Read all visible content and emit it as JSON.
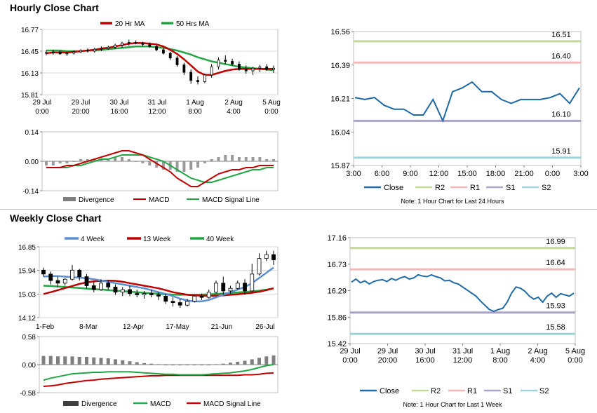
{
  "hourly": {
    "title": "Hourly Close Chart",
    "legend": {
      "ma20": "20 Hr MA",
      "ma50": "50 Hrs MA"
    },
    "x_ticks": [
      [
        "29 Jul",
        "0:00"
      ],
      [
        "29 Jul",
        "20:00"
      ],
      [
        "30 Jul",
        "16:00"
      ],
      [
        "31 Jul",
        "12:00"
      ],
      [
        "1 Aug",
        "8:00"
      ],
      [
        "2 Aug",
        "4:00"
      ],
      [
        "5 Aug",
        "0:00"
      ]
    ],
    "macd_legend": {
      "divergence": "Divergence",
      "macd": "MACD",
      "signal": "MACD Signal Line"
    }
  },
  "weekly": {
    "title": "Weekly Close Chart",
    "legend": {
      "w4": "4 Week",
      "w13": "13 Week",
      "w40": "40 Week"
    },
    "x_ticks": [
      "1-Feb",
      "8-Mar",
      "12-Apr",
      "17-May",
      "21-Jun",
      "26-Jul"
    ],
    "macd_legend": {
      "divergence": "Divergence",
      "macd": "MACD",
      "signal": "MACD Signal Line"
    }
  },
  "right_top": {
    "legend": {
      "close": "Close",
      "r2": "R2",
      "r1": "R1",
      "s1": "S1",
      "s2": "S2"
    },
    "note": "Note: 1 Hour Chart for Last 24 Hours"
  },
  "right_bottom": {
    "legend": {
      "close": "Close",
      "r2": "R2",
      "r1": "R1",
      "s1": "S1",
      "s2": "S2"
    },
    "note": "Note: 1 Hour Chart for Last 1 Week"
  },
  "colors": {
    "close": "#1f6aa5",
    "r2": "#c4d79b",
    "r1": "#f2b8b8",
    "s1": "#a9a3c6",
    "s2": "#9fd3d8",
    "ma_red": "#c00000",
    "ma_green": "#22a645",
    "ma_blue": "#5b8ed4",
    "div": "#7f7f7f",
    "grid": "#d9d9d9"
  },
  "chart_data": [
    {
      "id": "hourly-price",
      "type": "candlestick",
      "title": "Hourly Close Chart",
      "ylim": [
        15.81,
        16.77
      ],
      "y_ticks": [
        "16.77",
        "16.45",
        "16.13",
        "15.81"
      ],
      "ohlc": [
        [
          16.42,
          16.46,
          16.39,
          16.43
        ],
        [
          16.43,
          16.47,
          16.4,
          16.44
        ],
        [
          16.44,
          16.46,
          16.4,
          16.41
        ],
        [
          16.41,
          16.44,
          16.38,
          16.42
        ],
        [
          16.42,
          16.46,
          16.4,
          16.44
        ],
        [
          16.44,
          16.48,
          16.42,
          16.46
        ],
        [
          16.46,
          16.49,
          16.43,
          16.45
        ],
        [
          16.45,
          16.5,
          16.43,
          16.48
        ],
        [
          16.48,
          16.52,
          16.45,
          16.49
        ],
        [
          16.49,
          16.53,
          16.47,
          16.51
        ],
        [
          16.51,
          16.56,
          16.48,
          16.54
        ],
        [
          16.54,
          16.59,
          16.5,
          16.57
        ],
        [
          16.57,
          16.62,
          16.53,
          16.58
        ],
        [
          16.58,
          16.61,
          16.55,
          16.57
        ],
        [
          16.57,
          16.59,
          16.52,
          16.55
        ],
        [
          16.55,
          16.58,
          16.5,
          16.52
        ],
        [
          16.52,
          16.54,
          16.45,
          16.47
        ],
        [
          16.47,
          16.5,
          16.4,
          16.42
        ],
        [
          16.42,
          16.44,
          16.32,
          16.35
        ],
        [
          16.35,
          16.38,
          16.22,
          16.25
        ],
        [
          16.25,
          16.28,
          16.1,
          16.14
        ],
        [
          16.14,
          16.18,
          15.97,
          16.02
        ],
        [
          16.02,
          16.08,
          15.96,
          16.0
        ],
        [
          16.0,
          16.12,
          15.98,
          16.1
        ],
        [
          16.1,
          16.26,
          16.06,
          16.22
        ],
        [
          16.22,
          16.36,
          16.18,
          16.32
        ],
        [
          16.32,
          16.39,
          16.26,
          16.3
        ],
        [
          16.3,
          16.34,
          16.24,
          16.26
        ],
        [
          16.26,
          16.3,
          16.16,
          16.18
        ],
        [
          16.18,
          16.24,
          16.12,
          16.16
        ],
        [
          16.16,
          16.22,
          16.1,
          16.2
        ],
        [
          16.2,
          16.25,
          16.14,
          16.22
        ],
        [
          16.22,
          16.26,
          16.16,
          16.18
        ],
        [
          16.18,
          16.24,
          16.13,
          16.2
        ]
      ],
      "ma20": [
        16.42,
        16.43,
        16.43,
        16.43,
        16.44,
        16.45,
        16.46,
        16.47,
        16.49,
        16.5,
        16.52,
        16.54,
        16.56,
        16.57,
        16.57,
        16.56,
        16.55,
        16.52,
        16.47,
        16.41,
        16.33,
        16.24,
        16.15,
        16.1,
        16.1,
        16.13,
        16.16,
        16.18,
        16.19,
        16.19,
        16.19,
        16.19,
        16.19,
        16.19
      ],
      "ma50": [
        16.46,
        16.46,
        16.46,
        16.45,
        16.45,
        16.45,
        16.46,
        16.46,
        16.47,
        16.48,
        16.49,
        16.5,
        16.51,
        16.52,
        16.52,
        16.52,
        16.51,
        16.5,
        16.48,
        16.46,
        16.43,
        16.4,
        16.36,
        16.33,
        16.3,
        16.28,
        16.26,
        16.24,
        16.22,
        16.21,
        16.2,
        16.19,
        16.18,
        16.17
      ]
    },
    {
      "id": "hourly-macd",
      "type": "macd",
      "ylim": [
        -0.14,
        0.14
      ],
      "y_ticks": [
        "0.14",
        "0.00",
        "-0.14"
      ],
      "divergence": [
        -0.02,
        -0.02,
        -0.01,
        -0.01,
        0.0,
        0.01,
        0.01,
        0.01,
        0.01,
        0.01,
        0.02,
        0.02,
        0.01,
        0.0,
        -0.01,
        -0.02,
        -0.03,
        -0.04,
        -0.04,
        -0.05,
        -0.05,
        -0.04,
        -0.03,
        -0.01,
        0.01,
        0.02,
        0.03,
        0.03,
        0.02,
        0.02,
        0.02,
        0.02,
        0.01,
        0.01
      ],
      "macd": [
        -0.03,
        -0.03,
        -0.03,
        -0.02,
        -0.02,
        -0.01,
        0.0,
        0.01,
        0.02,
        0.03,
        0.04,
        0.05,
        0.05,
        0.04,
        0.03,
        0.01,
        -0.01,
        -0.03,
        -0.05,
        -0.08,
        -0.1,
        -0.12,
        -0.12,
        -0.1,
        -0.08,
        -0.06,
        -0.05,
        -0.04,
        -0.04,
        -0.03,
        -0.03,
        -0.02,
        -0.02,
        -0.02
      ],
      "signal": [
        -0.03,
        -0.03,
        -0.03,
        -0.03,
        -0.02,
        -0.02,
        -0.01,
        0.0,
        0.01,
        0.01,
        0.02,
        0.03,
        0.03,
        0.03,
        0.03,
        0.02,
        0.01,
        0.0,
        -0.02,
        -0.04,
        -0.06,
        -0.08,
        -0.09,
        -0.1,
        -0.1,
        -0.09,
        -0.08,
        -0.07,
        -0.06,
        -0.05,
        -0.04,
        -0.04,
        -0.03,
        -0.03
      ]
    },
    {
      "id": "hourly-24h-line",
      "type": "line",
      "ylim": [
        15.87,
        16.56
      ],
      "y_ticks": [
        "16.56",
        "16.39",
        "16.21",
        "16.04",
        "15.87"
      ],
      "x_ticks": [
        "3:00",
        "6:00",
        "9:00",
        "12:00",
        "15:00",
        "18:00",
        "21:00",
        "0:00",
        "3:00"
      ],
      "close": [
        16.22,
        16.21,
        16.22,
        16.18,
        16.16,
        16.16,
        16.13,
        16.13,
        16.21,
        16.1,
        16.25,
        16.27,
        16.3,
        16.25,
        16.25,
        16.21,
        16.19,
        16.21,
        16.21,
        16.21,
        16.22,
        16.24,
        16.19,
        16.27
      ],
      "levels": {
        "R2": 16.51,
        "R1": 16.4,
        "S1": 16.1,
        "S2": 15.91
      },
      "level_labels": [
        "16.51",
        "16.40",
        "16.10",
        "15.91"
      ]
    },
    {
      "id": "weekly-price",
      "type": "candlestick",
      "title": "Weekly Close Chart",
      "ylim": [
        14.12,
        16.85
      ],
      "y_ticks": [
        "16.85",
        "15.94",
        "15.03",
        "14.12"
      ],
      "ohlc": [
        [
          15.95,
          16.05,
          15.7,
          15.8
        ],
        [
          15.8,
          15.9,
          15.4,
          15.55
        ],
        [
          15.55,
          15.7,
          15.3,
          15.45
        ],
        [
          15.45,
          15.65,
          15.35,
          15.6
        ],
        [
          15.6,
          16.15,
          15.55,
          15.95
        ],
        [
          15.95,
          16.0,
          15.55,
          15.7
        ],
        [
          15.7,
          15.8,
          15.25,
          15.35
        ],
        [
          15.35,
          15.5,
          15.1,
          15.2
        ],
        [
          15.2,
          15.6,
          15.15,
          15.45
        ],
        [
          15.45,
          15.55,
          15.2,
          15.3
        ],
        [
          15.3,
          15.4,
          15.0,
          15.1
        ],
        [
          15.1,
          15.3,
          14.95,
          15.2
        ],
        [
          15.2,
          15.35,
          14.95,
          15.05
        ],
        [
          15.05,
          15.2,
          14.9,
          15.0
        ],
        [
          15.0,
          15.15,
          14.85,
          15.05
        ],
        [
          15.05,
          15.2,
          14.9,
          15.0
        ],
        [
          15.0,
          15.1,
          14.8,
          14.95
        ],
        [
          14.95,
          15.05,
          14.65,
          14.75
        ],
        [
          14.75,
          14.9,
          14.55,
          14.7
        ],
        [
          14.7,
          14.85,
          14.5,
          14.6
        ],
        [
          14.6,
          14.85,
          14.55,
          14.75
        ],
        [
          14.75,
          15.0,
          14.7,
          14.95
        ],
        [
          14.95,
          15.05,
          14.8,
          14.9
        ],
        [
          14.9,
          15.2,
          14.85,
          15.1
        ],
        [
          15.1,
          15.55,
          15.05,
          15.45
        ],
        [
          15.45,
          15.7,
          15.0,
          15.15
        ],
        [
          15.15,
          15.35,
          15.05,
          15.25
        ],
        [
          15.25,
          15.55,
          15.2,
          15.45
        ],
        [
          15.45,
          15.6,
          15.0,
          15.15
        ],
        [
          15.15,
          16.2,
          15.1,
          15.8
        ],
        [
          15.8,
          16.6,
          15.75,
          16.4
        ],
        [
          16.4,
          16.7,
          16.3,
          16.55
        ],
        [
          16.55,
          16.7,
          16.15,
          16.35
        ]
      ],
      "ma4": [
        15.7,
        15.72,
        15.72,
        15.7,
        15.68,
        15.66,
        15.64,
        15.6,
        15.55,
        15.5,
        15.45,
        15.4,
        15.35,
        15.3,
        15.25,
        15.18,
        15.1,
        15.03,
        14.95,
        14.85,
        14.78,
        14.75,
        14.75,
        14.8,
        14.9,
        15.0,
        15.1,
        15.2,
        15.3,
        15.45,
        15.65,
        15.85,
        16.05
      ],
      "ma13": [
        15.03,
        15.1,
        15.18,
        15.26,
        15.34,
        15.42,
        15.48,
        15.52,
        15.54,
        15.55,
        15.54,
        15.5,
        15.45,
        15.4,
        15.35,
        15.3,
        15.25,
        15.18,
        15.1,
        15.05,
        15.0,
        14.98,
        14.97,
        14.96,
        14.97,
        14.98,
        15.0,
        15.02,
        15.05,
        15.08,
        15.12,
        15.18,
        15.25
      ],
      "ma40": [
        15.35,
        15.34,
        15.32,
        15.3,
        15.28,
        15.26,
        15.24,
        15.22,
        15.2,
        15.18,
        15.16,
        15.14,
        15.12,
        15.1,
        15.08,
        15.06,
        15.04,
        15.02,
        15.01,
        15.0,
        15.0,
        15.0,
        15.01,
        15.02,
        15.03,
        15.05,
        15.07,
        15.09,
        15.11,
        15.13,
        15.16,
        15.2,
        15.25
      ]
    },
    {
      "id": "weekly-macd",
      "type": "macd",
      "ylim": [
        -0.58,
        0.58
      ],
      "y_ticks": [
        "0.58",
        "0.00",
        "-0.58"
      ],
      "divergence": [
        0.18,
        0.18,
        0.17,
        0.17,
        0.17,
        0.16,
        0.16,
        0.15,
        0.14,
        0.13,
        0.11,
        0.09,
        0.07,
        0.05,
        0.03,
        0.02,
        0.01,
        0.0,
        -0.01,
        -0.01,
        -0.01,
        -0.01,
        0.0,
        0.0,
        0.01,
        0.02,
        0.04,
        0.06,
        0.08,
        0.11,
        0.14,
        0.17,
        0.19
      ],
      "macd": [
        -0.32,
        -0.28,
        -0.25,
        -0.22,
        -0.19,
        -0.18,
        -0.17,
        -0.16,
        -0.16,
        -0.15,
        -0.15,
        -0.15,
        -0.15,
        -0.16,
        -0.17,
        -0.18,
        -0.19,
        -0.2,
        -0.2,
        -0.21,
        -0.21,
        -0.21,
        -0.21,
        -0.2,
        -0.19,
        -0.18,
        -0.17,
        -0.15,
        -0.13,
        -0.1,
        -0.06,
        -0.02,
        0.0
      ],
      "signal": [
        -0.45,
        -0.44,
        -0.42,
        -0.39,
        -0.37,
        -0.35,
        -0.33,
        -0.32,
        -0.3,
        -0.29,
        -0.28,
        -0.27,
        -0.26,
        -0.25,
        -0.24,
        -0.23,
        -0.23,
        -0.22,
        -0.22,
        -0.22,
        -0.22,
        -0.22,
        -0.22,
        -0.22,
        -0.22,
        -0.22,
        -0.22,
        -0.22,
        -0.21,
        -0.21,
        -0.2,
        -0.18,
        -0.17
      ]
    },
    {
      "id": "weekly-1w-line",
      "type": "line",
      "ylim": [
        15.42,
        17.16
      ],
      "y_ticks": [
        "17.16",
        "16.73",
        "16.29",
        "15.86",
        "15.42"
      ],
      "x_ticks": [
        [
          "29 Jul",
          "0:00"
        ],
        [
          "29 Jul",
          "20:00"
        ],
        [
          "30 Jul",
          "16:00"
        ],
        [
          "31 Jul",
          "12:00"
        ],
        [
          "1 Aug",
          "8:00"
        ],
        [
          "2 Aug",
          "4:00"
        ],
        [
          "5 Aug",
          "0:00"
        ]
      ],
      "close": [
        16.43,
        16.48,
        16.42,
        16.45,
        16.4,
        16.44,
        16.46,
        16.47,
        16.44,
        16.49,
        16.46,
        16.5,
        16.52,
        16.48,
        16.5,
        16.55,
        16.53,
        16.52,
        16.55,
        16.52,
        16.5,
        16.45,
        16.46,
        16.42,
        16.4,
        16.35,
        16.3,
        16.25,
        16.2,
        16.12,
        16.05,
        15.98,
        15.95,
        15.98,
        16.0,
        16.1,
        16.25,
        16.35,
        16.33,
        16.28,
        16.2,
        16.15,
        16.18,
        16.1,
        16.2,
        16.25,
        16.18,
        16.24,
        16.22,
        16.2,
        16.25
      ],
      "levels": {
        "R2": 16.99,
        "R1": 16.64,
        "S1": 15.93,
        "S2": 15.58
      },
      "level_labels": [
        "16.99",
        "16.64",
        "15.93",
        "15.58"
      ]
    }
  ]
}
